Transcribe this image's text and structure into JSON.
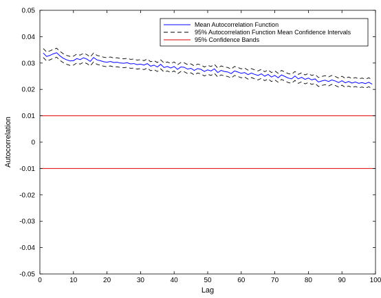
{
  "chart_data": {
    "type": "line",
    "title": "",
    "xlabel": "Lag",
    "ylabel": "Autocorrelation",
    "xlim": [
      0,
      100
    ],
    "ylim": [
      -0.05,
      0.05
    ],
    "xticks": [
      0,
      10,
      20,
      30,
      40,
      50,
      60,
      70,
      80,
      90,
      100
    ],
    "yticks": [
      -0.05,
      -0.04,
      -0.03,
      -0.02,
      -0.01,
      0,
      0.01,
      0.02,
      0.03,
      0.04,
      0.05
    ],
    "xtick_labels": [
      "0",
      "10",
      "20",
      "30",
      "40",
      "50",
      "60",
      "70",
      "80",
      "90",
      "100"
    ],
    "ytick_labels": [
      "-0.05",
      "-0.04",
      "-0.03",
      "-0.02",
      "-0.01",
      "0",
      "0.01",
      "0.02",
      "0.03",
      "0.04",
      "0.05"
    ],
    "grid": false,
    "legend_position": "top-right",
    "legend": [
      "Mean Autocorrelation Function",
      "95% Autocorrelation Function Mean Confidence Intervals",
      "95% Confidence Bands"
    ],
    "colors": {
      "mean": "#0000ff",
      "ci": "#000000",
      "bands": "#e00000"
    },
    "x": [
      1,
      2,
      3,
      4,
      5,
      6,
      7,
      8,
      9,
      10,
      11,
      12,
      13,
      14,
      15,
      16,
      17,
      18,
      19,
      20,
      21,
      22,
      23,
      24,
      25,
      26,
      27,
      28,
      29,
      30,
      31,
      32,
      33,
      34,
      35,
      36,
      37,
      38,
      39,
      40,
      41,
      42,
      43,
      44,
      45,
      46,
      47,
      48,
      49,
      50,
      51,
      52,
      53,
      54,
      55,
      56,
      57,
      58,
      59,
      60,
      61,
      62,
      63,
      64,
      65,
      66,
      67,
      68,
      69,
      70,
      71,
      72,
      73,
      74,
      75,
      76,
      77,
      78,
      79,
      80,
      81,
      82,
      83,
      84,
      85,
      86,
      87,
      88,
      89,
      90,
      91,
      92,
      93,
      94,
      95,
      96,
      97,
      98,
      99
    ],
    "series": [
      {
        "name": "Mean Autocorrelation Function",
        "values": [
          0.0338,
          0.0325,
          0.0329,
          0.0335,
          0.0339,
          0.0327,
          0.0318,
          0.0312,
          0.0308,
          0.0309,
          0.0317,
          0.0313,
          0.032,
          0.0315,
          0.0306,
          0.0321,
          0.0312,
          0.0309,
          0.0305,
          0.0303,
          0.0306,
          0.0302,
          0.0303,
          0.03,
          0.0299,
          0.0301,
          0.0297,
          0.0298,
          0.0294,
          0.0296,
          0.0292,
          0.0298,
          0.0288,
          0.0292,
          0.0285,
          0.0295,
          0.0283,
          0.0287,
          0.0281,
          0.0287,
          0.0276,
          0.0285,
          0.0284,
          0.0277,
          0.028,
          0.0272,
          0.0279,
          0.0276,
          0.0268,
          0.0274,
          0.027,
          0.0278,
          0.0264,
          0.0272,
          0.0268,
          0.0266,
          0.026,
          0.027,
          0.0266,
          0.0261,
          0.0264,
          0.0256,
          0.0262,
          0.0257,
          0.0253,
          0.0259,
          0.025,
          0.0257,
          0.0247,
          0.0253,
          0.0244,
          0.0255,
          0.0249,
          0.0243,
          0.024,
          0.0251,
          0.024,
          0.0246,
          0.0238,
          0.0243,
          0.0236,
          0.024,
          0.0228,
          0.0232,
          0.0235,
          0.023,
          0.0236,
          0.0232,
          0.0226,
          0.0233,
          0.0225,
          0.023,
          0.0224,
          0.0228,
          0.0223,
          0.0226,
          0.0222,
          0.0227,
          0.022
        ]
      },
      {
        "name": "95% Autocorrelation Function Mean Confidence Intervals",
        "values": [
          0.0355,
          0.0342,
          0.0346,
          0.0352,
          0.0356,
          0.0344,
          0.0335,
          0.0329,
          0.0325,
          0.0326,
          0.0334,
          0.033,
          0.0337,
          0.0332,
          0.0323,
          0.0338,
          0.0329,
          0.0326,
          0.0322,
          0.032,
          0.0323,
          0.0319,
          0.032,
          0.0317,
          0.0316,
          0.0318,
          0.0314,
          0.0315,
          0.0311,
          0.0313,
          0.0309,
          0.0315,
          0.0305,
          0.0309,
          0.0302,
          0.0312,
          0.03,
          0.0304,
          0.0298,
          0.0304,
          0.0293,
          0.0302,
          0.0301,
          0.0294,
          0.0297,
          0.0289,
          0.0296,
          0.0293,
          0.0285,
          0.0291,
          0.0287,
          0.0295,
          0.0281,
          0.0289,
          0.0285,
          0.0283,
          0.0277,
          0.0287,
          0.0283,
          0.0278,
          0.0281,
          0.0273,
          0.0279,
          0.0274,
          0.027,
          0.0276,
          0.0267,
          0.0274,
          0.0264,
          0.027,
          0.0261,
          0.0272,
          0.0266,
          0.026,
          0.0257,
          0.0268,
          0.0257,
          0.0263,
          0.0255,
          0.026,
          0.0253,
          0.0257,
          0.0245,
          0.0249,
          0.0252,
          0.0247,
          0.0253,
          0.0249,
          0.0243,
          0.025,
          0.0242,
          0.0247,
          0.0241,
          0.0245,
          0.024,
          0.0243,
          0.0239,
          0.0244,
          0.0237
        ]
      },
      {
        "name": "95% Autocorrelation Function Mean Confidence Intervals",
        "values": [
          0.0321,
          0.0308,
          0.0312,
          0.0318,
          0.0322,
          0.031,
          0.0301,
          0.0295,
          0.0291,
          0.0292,
          0.03,
          0.0296,
          0.0303,
          0.0298,
          0.0289,
          0.0304,
          0.0295,
          0.0292,
          0.0288,
          0.0286,
          0.0289,
          0.0285,
          0.0286,
          0.0283,
          0.0282,
          0.0284,
          0.028,
          0.0281,
          0.0277,
          0.0279,
          0.0275,
          0.0281,
          0.0271,
          0.0275,
          0.0268,
          0.0278,
          0.0266,
          0.027,
          0.0264,
          0.027,
          0.0259,
          0.0268,
          0.0267,
          0.026,
          0.0263,
          0.0255,
          0.0262,
          0.0259,
          0.0251,
          0.0257,
          0.0253,
          0.0261,
          0.0247,
          0.0255,
          0.0251,
          0.0249,
          0.0243,
          0.0253,
          0.0249,
          0.0244,
          0.0247,
          0.0239,
          0.0245,
          0.024,
          0.0236,
          0.0242,
          0.0233,
          0.024,
          0.023,
          0.0236,
          0.0227,
          0.0238,
          0.0232,
          0.0226,
          0.0223,
          0.0234,
          0.0223,
          0.0229,
          0.0221,
          0.0226,
          0.0219,
          0.0223,
          0.0211,
          0.0215,
          0.0218,
          0.0213,
          0.0219,
          0.0215,
          0.0209,
          0.0216,
          0.0208,
          0.0213,
          0.0207,
          0.0211,
          0.0206,
          0.0209,
          0.0205,
          0.021,
          0.0203
        ]
      }
    ],
    "bands": [
      {
        "name": "95% Confidence Bands",
        "y": 0.01
      },
      {
        "name": "95% Confidence Bands",
        "y": -0.01
      }
    ]
  }
}
